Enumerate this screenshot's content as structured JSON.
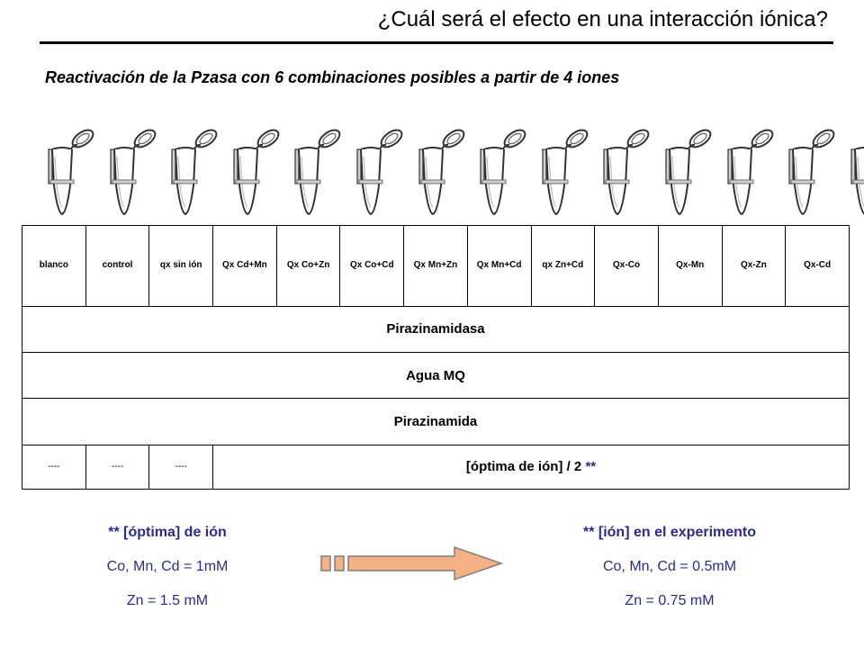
{
  "title": "¿Cuál será el efecto en una interacción iónica?",
  "subtitle": "Reactivación de la Pzasa con 6 combinaciones posibles a partir de 4 iones",
  "tube_count": 14,
  "table": {
    "headers": [
      "blanco",
      "control",
      "qx sin ión",
      "Qx Cd+Mn",
      "Qx Co+Zn",
      "Qx Co+Cd",
      "Qx Mn+Zn",
      "Qx Mn+Cd",
      "qx Zn+Cd",
      "Qx-Co",
      "Qx-Mn",
      "Qx-Zn",
      "Qx-Cd"
    ],
    "rows": [
      "Pirazinamidasa",
      "Agua MQ",
      "Pirazinamida"
    ],
    "last_row": {
      "dashes": [
        "----",
        "----",
        "----"
      ],
      "concentration_text": "[óptima de ión] / 2",
      "concentration_marker": "**"
    }
  },
  "left_notes": {
    "heading": "** [óptima] de ión",
    "line1": "Co, Mn, Cd = 1mM",
    "line2": "Zn = 1.5 mM"
  },
  "right_notes": {
    "heading": "** [ión] en el experimento",
    "line1": "Co, Mn, Cd = 0.5mM",
    "line2": "Zn = 0.75 mM"
  },
  "colors": {
    "accent_text": "#2b2b8f",
    "arrow_fill": "#f4b183",
    "arrow_stroke": "#7f7f7f"
  },
  "icons": [
    "microcentrifuge-tube-icon",
    "right-arrow-icon"
  ]
}
